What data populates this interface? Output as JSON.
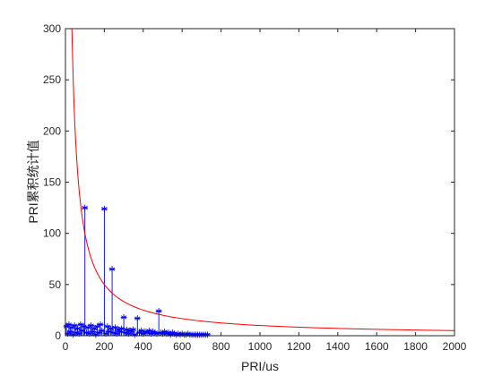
{
  "chart_data": {
    "type": "stem",
    "xlabel": "PRI/us",
    "ylabel": "PRI累积统计值",
    "xlim": [
      0,
      2000
    ],
    "ylim": [
      0,
      300
    ],
    "xticks": [
      0,
      200,
      400,
      600,
      800,
      1000,
      1200,
      1400,
      1600,
      1800,
      2000
    ],
    "yticks": [
      0,
      50,
      100,
      150,
      200,
      250,
      300
    ],
    "grid": false,
    "legend": "none",
    "colors": {
      "stems": "#0000ff",
      "threshold": "#ff0000",
      "axes": "#262626"
    },
    "series": [
      {
        "kind": "stem-markers",
        "marker": "*",
        "points": [
          [
            5,
            9
          ],
          [
            12,
            2
          ],
          [
            18,
            11
          ],
          [
            25,
            4
          ],
          [
            32,
            8
          ],
          [
            40,
            1
          ],
          [
            47,
            10
          ],
          [
            55,
            3
          ],
          [
            62,
            7
          ],
          [
            70,
            2
          ],
          [
            78,
            11
          ],
          [
            86,
            5
          ],
          [
            94,
            9
          ],
          [
            100,
            125
          ],
          [
            108,
            3
          ],
          [
            116,
            8
          ],
          [
            124,
            2
          ],
          [
            132,
            10
          ],
          [
            140,
            4
          ],
          [
            148,
            7
          ],
          [
            156,
            1
          ],
          [
            164,
            9
          ],
          [
            172,
            3
          ],
          [
            180,
            11
          ],
          [
            188,
            5
          ],
          [
            200,
            124
          ],
          [
            208,
            2
          ],
          [
            216,
            9
          ],
          [
            224,
            4
          ],
          [
            232,
            7
          ],
          [
            240,
            65
          ],
          [
            248,
            3
          ],
          [
            256,
            8
          ],
          [
            264,
            2
          ],
          [
            272,
            6
          ],
          [
            280,
            4
          ],
          [
            288,
            7
          ],
          [
            300,
            18
          ],
          [
            308,
            3
          ],
          [
            316,
            6
          ],
          [
            324,
            2
          ],
          [
            332,
            5
          ],
          [
            340,
            4
          ],
          [
            348,
            6
          ],
          [
            356,
            1
          ],
          [
            370,
            17
          ],
          [
            380,
            3
          ],
          [
            390,
            5
          ],
          [
            400,
            2
          ],
          [
            410,
            4
          ],
          [
            420,
            3
          ],
          [
            430,
            5
          ],
          [
            440,
            2
          ],
          [
            450,
            4
          ],
          [
            460,
            3
          ],
          [
            470,
            2
          ],
          [
            480,
            24
          ],
          [
            490,
            3
          ],
          [
            500,
            2
          ],
          [
            510,
            4
          ],
          [
            520,
            2
          ],
          [
            530,
            3
          ],
          [
            540,
            1
          ],
          [
            550,
            3
          ],
          [
            560,
            2
          ],
          [
            570,
            1
          ],
          [
            580,
            2
          ],
          [
            590,
            1
          ],
          [
            600,
            2
          ],
          [
            610,
            1
          ],
          [
            620,
            1
          ],
          [
            630,
            2
          ],
          [
            640,
            1
          ],
          [
            650,
            1
          ],
          [
            660,
            1
          ],
          [
            670,
            1
          ],
          [
            680,
            1
          ],
          [
            690,
            1
          ],
          [
            700,
            1
          ],
          [
            710,
            1
          ],
          [
            720,
            1
          ],
          [
            730,
            1
          ]
        ]
      },
      {
        "kind": "line",
        "formula": "y = 10000 / x",
        "x_from": 30,
        "x_to": 2000
      }
    ]
  }
}
